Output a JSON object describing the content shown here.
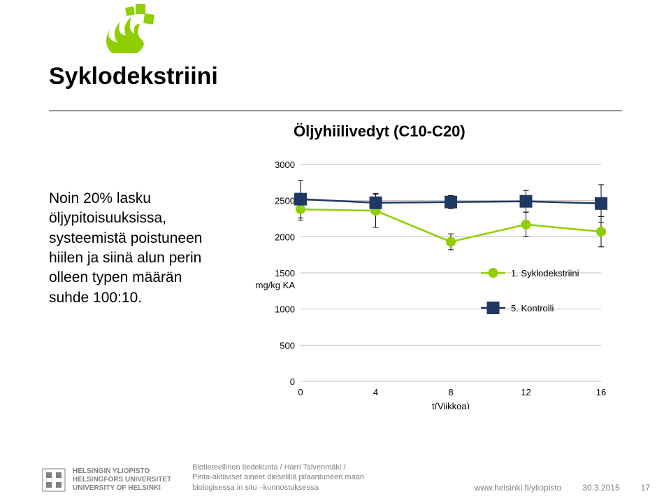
{
  "page_title": "Syklodekstriini",
  "chart": {
    "type": "line",
    "title": "Öljyhiilivedyt (C10-C20)",
    "x_values": [
      0,
      4,
      8,
      12,
      16
    ],
    "x_axis_label": "t(Viikkoa)",
    "y_ticks": [
      0,
      500,
      1000,
      1500,
      2000,
      2500,
      3000
    ],
    "y_label_top": "mg/kg KA",
    "ylim": [
      0,
      3000
    ],
    "xlim": [
      0,
      16
    ],
    "grid_color": "#bfbfbf",
    "grid_line_width": 1,
    "background_color": "#ffffff",
    "tick_fontsize": 13,
    "axis_label_fontsize": 13,
    "title_fontsize": 22,
    "series": [
      {
        "name": "1. Syklodekstriini",
        "color": "#8fce00",
        "marker": "circle",
        "marker_size": 7,
        "line_width": 2.5,
        "y": [
          2380,
          2360,
          1930,
          2170,
          2070
        ],
        "err": [
          150,
          230,
          110,
          170,
          210
        ]
      },
      {
        "name": "5. Kontrolli",
        "color": "#1f3864",
        "marker": "square",
        "marker_size": 9,
        "line_width": 2.5,
        "y": [
          2520,
          2470,
          2480,
          2490,
          2460
        ],
        "err": [
          260,
          130,
          90,
          150,
          260
        ]
      }
    ],
    "legend": {
      "x": 0.6,
      "y_start": 0.5,
      "fontsize": 13,
      "line_len": 35,
      "gap_y": 50
    },
    "errorbar": {
      "color": "#000000",
      "line_width": 1,
      "cap_width": 8
    }
  },
  "body_text": {
    "line1": "Noin 20% lasku",
    "line2": "öljypitoisuuksissa,",
    "line3": "systeemistä poistuneen",
    "line4": "hiilen ja siinä alun perin",
    "line5": "olleen typen määrän",
    "line6": "suhde 100:10."
  },
  "footer": {
    "uni_name1": "HELSINGIN YLIOPISTO",
    "uni_name2": "HELSINGFORS UNIVERSITET",
    "uni_name3": "UNIVERSITY OF HELSINKI",
    "credit_line1": "Biotieteellinen tiedekunta / Harri Talvenmäki /",
    "credit_line2": "Pinta-aktiiviset aineet dieselillä pilaantuneen maan",
    "credit_line3": "biologisessa in situ –kunnostuksessa",
    "url": "www.helsinki.fi/yliopisto",
    "date": "30.3.2015",
    "page": "17"
  },
  "logo_color": "#8fce00"
}
